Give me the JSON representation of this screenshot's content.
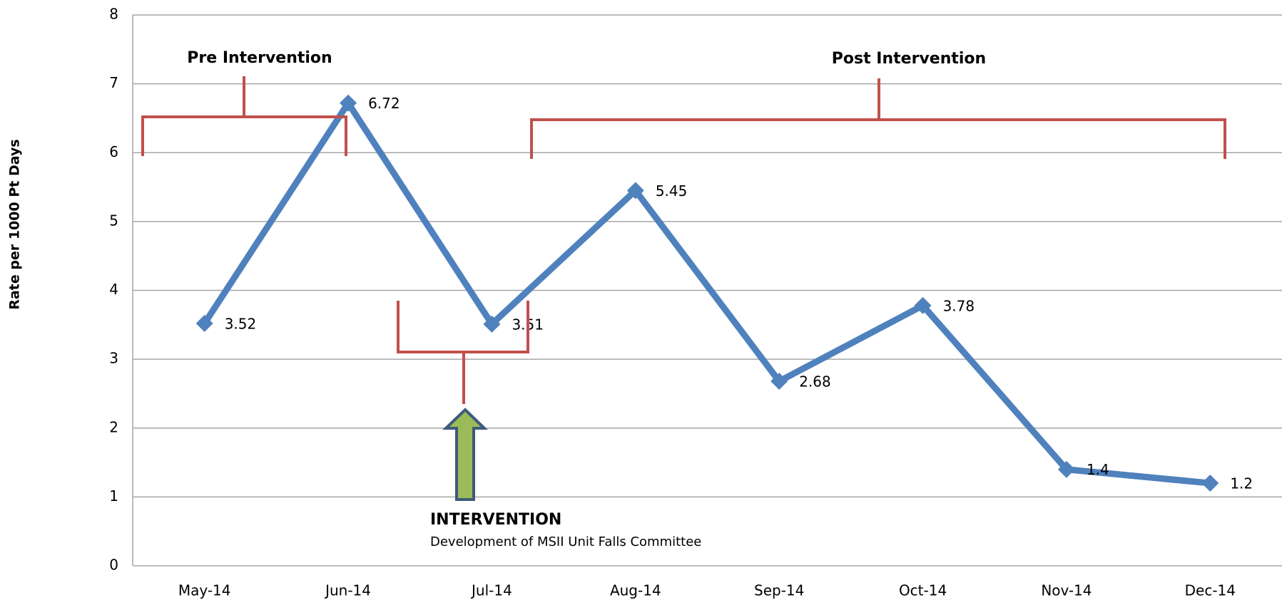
{
  "chart_data": {
    "type": "line",
    "ylabel": "Rate per 1000 Pt Days",
    "categories": [
      "May-14",
      "Jun-14",
      "Jul-14",
      "Aug-14",
      "Sep-14",
      "Oct-14",
      "Nov-14",
      "Dec-14"
    ],
    "series": [
      {
        "color": "#4f81bd",
        "values": [
          3.52,
          6.72,
          3.51,
          5.45,
          2.68,
          3.78,
          1.4,
          1.2
        ]
      }
    ],
    "ylim": [
      0,
      8
    ],
    "yticks": [
      0,
      1,
      2,
      3,
      4,
      5,
      6,
      7,
      8
    ],
    "grid": true,
    "annotations": {
      "pre": "Pre Intervention",
      "post": "Post Intervention",
      "intervention": "INTERVENTION",
      "intervention_detail": "Development of MSII Unit Falls Committee"
    }
  }
}
